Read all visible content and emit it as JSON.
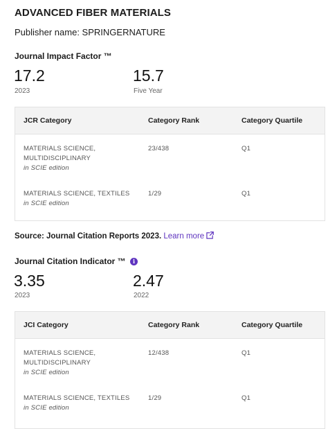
{
  "journal": {
    "title": "ADVANCED FIBER MATERIALS",
    "publisher": "Publisher name: SPRINGERNATURE"
  },
  "jif": {
    "title": "Journal Impact Factor ™",
    "metrics": [
      {
        "value": "17.2",
        "label": "2023"
      },
      {
        "value": "15.7",
        "label": "Five Year"
      }
    ],
    "table": {
      "headers": [
        "JCR Category",
        "Category Rank",
        "Category Quartile"
      ],
      "rows": [
        {
          "category_line1": "MATERIALS SCIENCE,",
          "category_line2": "MULTIDISCIPLINARY",
          "edition": "in SCIE edition",
          "rank": "23/438",
          "quartile": "Q1"
        },
        {
          "category_line1": "MATERIALS SCIENCE, TEXTILES",
          "category_line2": "",
          "edition": "in SCIE edition",
          "rank": "1/29",
          "quartile": "Q1"
        }
      ]
    }
  },
  "source": {
    "text": "Source: Journal Citation Reports  2023.",
    "link_label": "Learn more",
    "icon": "external-link-icon"
  },
  "jci": {
    "title": "Journal Citation Indicator ™",
    "info_icon": "info-icon",
    "metrics": [
      {
        "value": "3.35",
        "label": "2023"
      },
      {
        "value": "2.47",
        "label": "2022"
      }
    ],
    "table": {
      "headers": [
        "JCI Category",
        "Category Rank",
        "Category Quartile"
      ],
      "rows": [
        {
          "category_line1": "MATERIALS SCIENCE,",
          "category_line2": "MULTIDISCIPLINARY",
          "edition": "in SCIE edition",
          "rank": "12/438",
          "quartile": "Q1"
        },
        {
          "category_line1": "MATERIALS SCIENCE, TEXTILES",
          "category_line2": "",
          "edition": "in SCIE edition",
          "rank": "1/29",
          "quartile": "Q1"
        }
      ]
    }
  },
  "colors": {
    "accent": "#5e33bf",
    "header_bg": "#f3f3f3",
    "border": "#e2e2e2"
  }
}
